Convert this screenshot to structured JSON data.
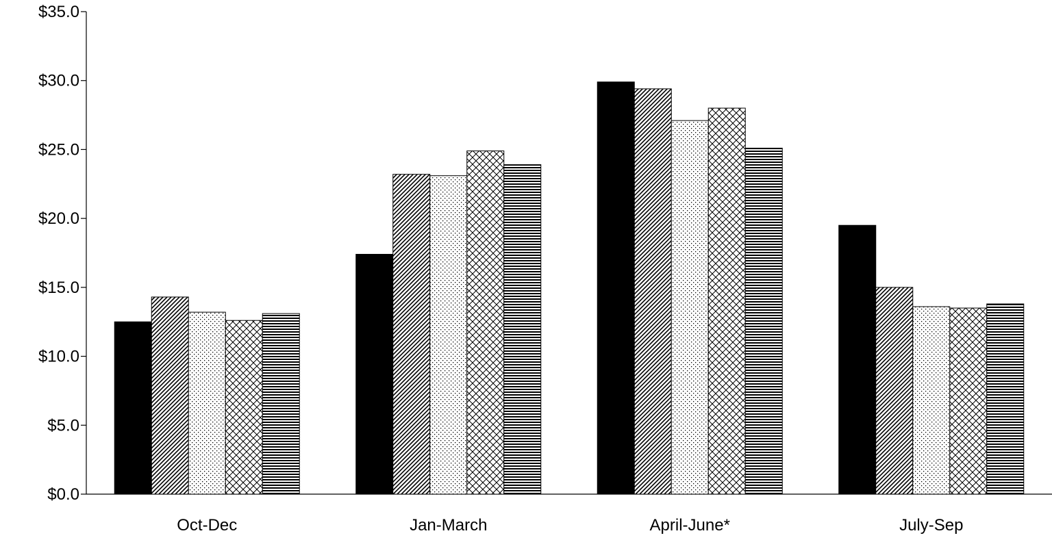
{
  "chart_data": {
    "type": "bar",
    "title": "",
    "xlabel": "",
    "ylabel": "",
    "categories": [
      "Oct-Dec",
      "Jan-March",
      "April-June*",
      "July-Sep"
    ],
    "ylim": [
      0,
      35
    ],
    "yticks": [
      0,
      5,
      10,
      15,
      20,
      25,
      30,
      35
    ],
    "ytick_labels": [
      "$0.0",
      "$5.0",
      "$10.0",
      "$15.0",
      "$20.0",
      "$25.0",
      "$30.0",
      "$35.0"
    ],
    "grid": false,
    "legend": "none",
    "series": [
      {
        "values": [
          12.5,
          17.4,
          29.9,
          19.5
        ],
        "fill": "solid-black"
      },
      {
        "values": [
          14.3,
          23.2,
          29.4,
          15.0
        ],
        "fill": "diagonal-hatch"
      },
      {
        "values": [
          13.2,
          23.1,
          27.1,
          13.6
        ],
        "fill": "dots"
      },
      {
        "values": [
          12.6,
          24.9,
          28.0,
          13.5
        ],
        "fill": "crosshatch"
      },
      {
        "values": [
          13.1,
          23.9,
          25.1,
          13.8
        ],
        "fill": "horizontal-lines"
      }
    ]
  }
}
